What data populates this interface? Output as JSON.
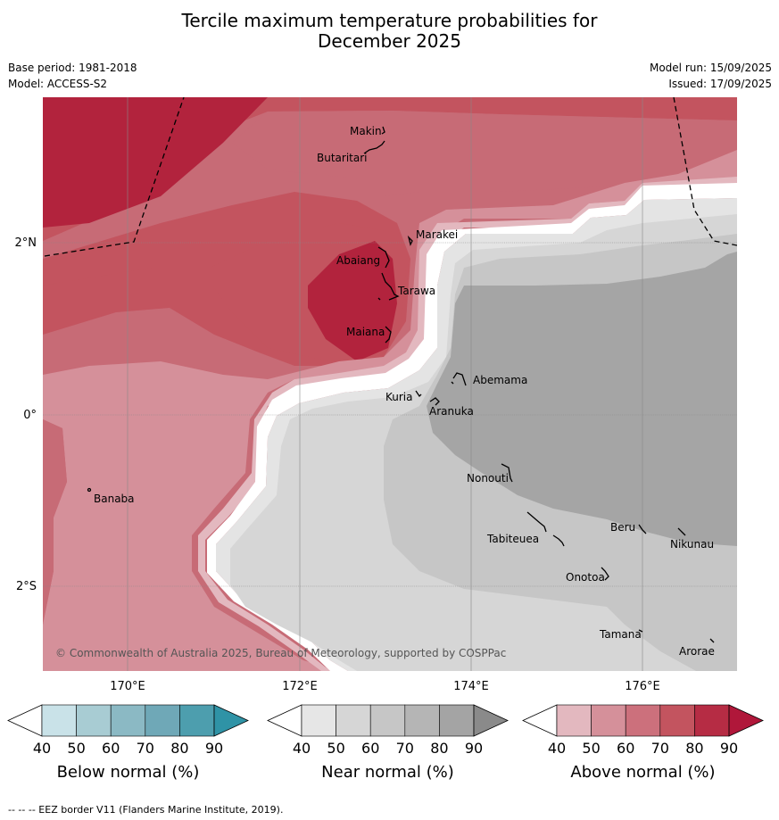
{
  "title_line1": "Tercile maximum temperature probabilities for",
  "title_line2": "December 2025",
  "base_period": "Base period: 1981-2018",
  "model": "Model: ACCESS-S2",
  "model_run": "Model run: 15/09/2025",
  "issued": "Issued: 17/09/2025",
  "copyright": "© Commonwealth of Australia 2025, Bureau of Meteorology, supported by COSPPac",
  "footer_note": "--  --  -- EEZ border V11 (Flanders Marine Institute, 2019).",
  "lat_labels": [
    "2°N",
    "0°",
    "2°S"
  ],
  "lon_labels": [
    "170°E",
    "172°E",
    "174°E",
    "176°E"
  ],
  "islands": [
    "Makin",
    "Butaritari",
    "Marakei",
    "Abaiang",
    "Tarawa",
    "Maiana",
    "Abemama",
    "Kuria",
    "Aranuka",
    "Banaba",
    "Nonouti",
    "Beru",
    "Nikunau",
    "Tabiteuea",
    "Onotoa",
    "Tamana",
    "Arorae"
  ],
  "legends": [
    {
      "label": "Below normal (%)",
      "ticks": [
        "40",
        "50",
        "60",
        "70",
        "80",
        "90"
      ],
      "colors": [
        "#c9e2e8",
        "#a8ccd3",
        "#8bb9c4",
        "#6fa8b7",
        "#4d9eae",
        "#2f93a6"
      ]
    },
    {
      "label": "Near normal (%)",
      "ticks": [
        "40",
        "50",
        "60",
        "70",
        "80",
        "90"
      ],
      "colors": [
        "#e6e6e6",
        "#d6d6d6",
        "#c6c6c6",
        "#b5b5b5",
        "#a4a4a4",
        "#8a8a8a"
      ]
    },
    {
      "label": "Above normal (%)",
      "ticks": [
        "40",
        "50",
        "60",
        "70",
        "80",
        "90"
      ],
      "colors": [
        "#e3b8bf",
        "#d5909a",
        "#cc707c",
        "#c3545f",
        "#b62c44",
        "#b0173a"
      ]
    }
  ]
}
